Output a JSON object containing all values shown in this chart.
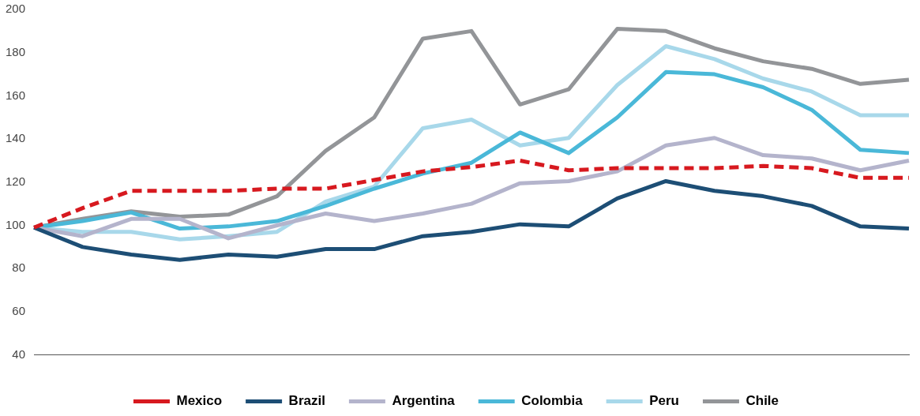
{
  "chart_data": {
    "type": "line",
    "categories": [
      null,
      null,
      null,
      null,
      null,
      null,
      null,
      null,
      null,
      null,
      null,
      null,
      null,
      null,
      null,
      null,
      null,
      null,
      null
    ],
    "ylim": [
      40,
      200
    ],
    "yticks": [
      40,
      60,
      80,
      100,
      120,
      140,
      160,
      180,
      200
    ],
    "grid": false,
    "legend": "bottom",
    "marker": "none",
    "series": [
      {
        "name": "Mexico",
        "color": "#d7191f",
        "line_style": "dashed",
        "values": [
          99,
          108,
          116,
          116,
          116,
          117,
          117,
          121,
          125,
          127,
          130,
          125.5,
          126.5,
          126.5,
          126.5,
          127.5,
          126.5,
          122,
          122
        ]
      },
      {
        "name": "Brazil",
        "color": "#1d4e75",
        "line_style": "solid",
        "values": [
          99,
          90,
          86.5,
          84,
          86.5,
          85.5,
          89,
          89,
          95,
          97,
          100.5,
          99.5,
          112.5,
          120.5,
          116,
          113.5,
          109,
          99.5,
          98.5
        ]
      },
      {
        "name": "Argentina",
        "color": "#b4b4cc",
        "line_style": "solid",
        "values": [
          99,
          95,
          103,
          103,
          94,
          100,
          105.5,
          102,
          105.5,
          110,
          119.5,
          120.5,
          125,
          137,
          140.5,
          132.5,
          131,
          125.5,
          130
        ]
      },
      {
        "name": "Colombia",
        "color": "#4ab8d8",
        "line_style": "solid",
        "values": [
          99,
          102,
          106,
          98.5,
          99.5,
          102,
          109,
          117,
          124,
          129,
          143,
          133.5,
          150,
          171,
          170,
          164,
          153.5,
          135,
          133.5
        ]
      },
      {
        "name": "Peru",
        "color": "#a8d8ea",
        "line_style": "solid",
        "values": [
          99,
          97,
          97,
          93.5,
          95,
          97,
          111,
          118,
          145,
          149,
          137,
          140.5,
          165,
          183,
          177,
          168,
          162,
          151,
          151
        ]
      },
      {
        "name": "Chile",
        "color": "#939598",
        "line_style": "solid",
        "values": [
          99,
          103,
          106.5,
          104,
          105,
          113.5,
          134.5,
          150,
          186.5,
          190,
          156,
          163,
          191,
          190,
          182,
          176,
          172.5,
          165.5,
          167.5
        ]
      }
    ]
  }
}
